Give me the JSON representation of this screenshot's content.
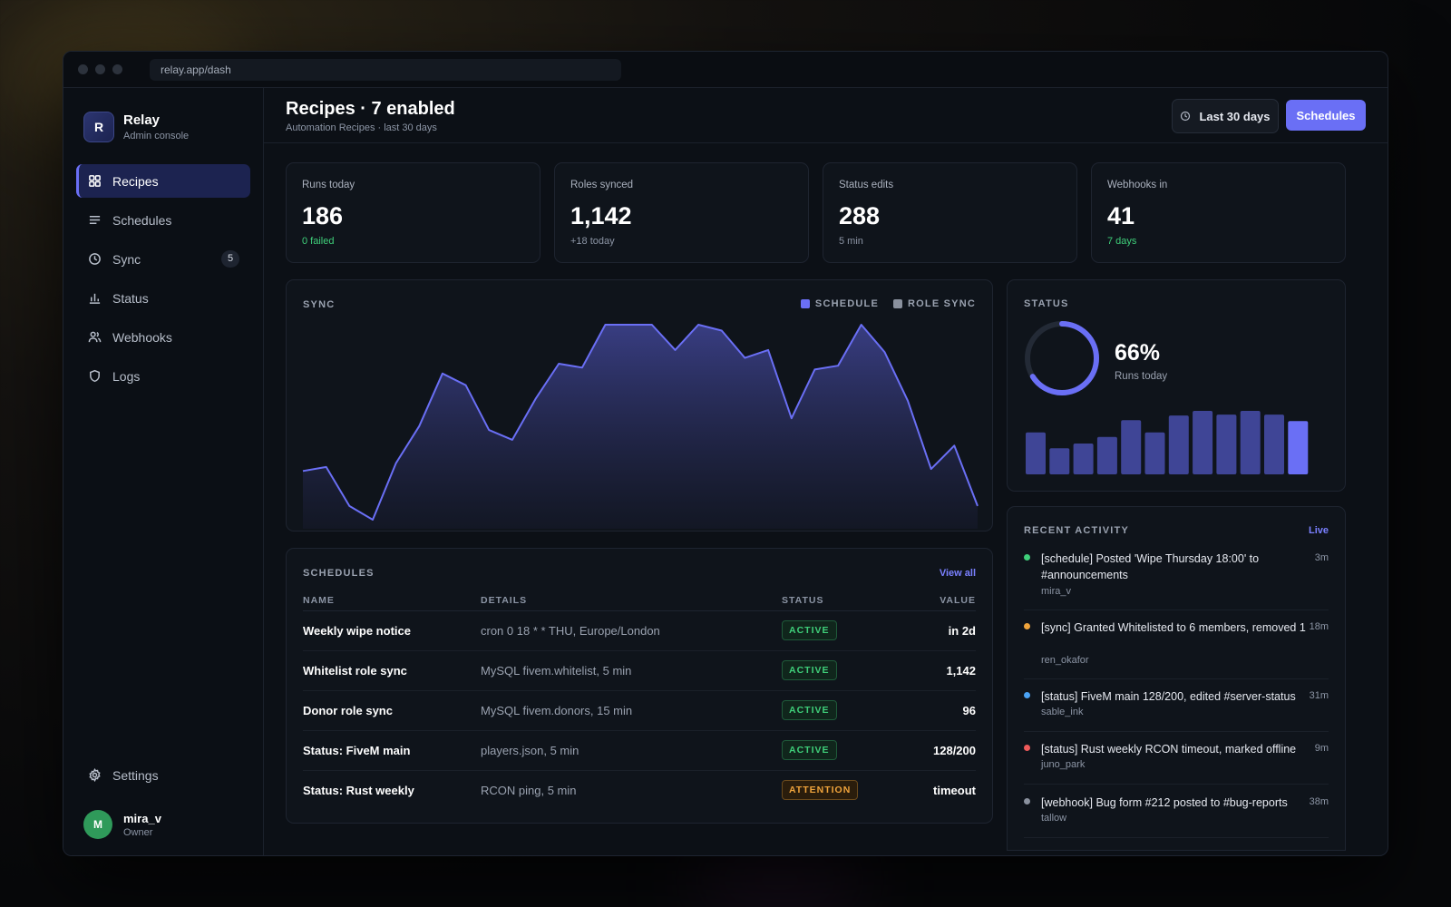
{
  "browser": {
    "url": "relay.app/dash"
  },
  "brand": {
    "logo_letter": "R",
    "name": "Relay",
    "subtitle": "Admin console"
  },
  "sidebar": {
    "items": [
      {
        "label": "Recipes",
        "icon": "grid-icon",
        "active": true
      },
      {
        "label": "Schedules",
        "icon": "list-icon"
      },
      {
        "label": "Sync",
        "icon": "clock-icon",
        "badge": "5"
      },
      {
        "label": "Status",
        "icon": "bar-chart-icon"
      },
      {
        "label": "Webhooks",
        "icon": "users-icon"
      },
      {
        "label": "Logs",
        "icon": "shield-icon"
      }
    ],
    "settings_label": "Settings"
  },
  "user": {
    "initial": "M",
    "name": "mira_v",
    "role": "Owner"
  },
  "header": {
    "title": "Recipes · 7 enabled",
    "subtitle": "Automation Recipes · last 30 days",
    "range_label": "Last 30 days",
    "primary_label": "Schedules"
  },
  "stats": [
    {
      "label": "Runs today",
      "value": "186",
      "sub": "0 failed",
      "sub_good": true
    },
    {
      "label": "Roles synced",
      "value": "1,142",
      "sub": "+18 today",
      "sub_good": false
    },
    {
      "label": "Status edits",
      "value": "288",
      "sub": "5 min",
      "sub_good": false
    },
    {
      "label": "Webhooks in",
      "value": "41",
      "sub": "7 days",
      "sub_good": true
    }
  ],
  "sync_panel": {
    "title": "SYNC",
    "legend": [
      {
        "label": "SCHEDULE",
        "color": "#6a6ff5"
      },
      {
        "label": "ROLE SYNC",
        "color": "#8a919e"
      }
    ]
  },
  "chart_data": [
    {
      "type": "area",
      "title": "SYNC",
      "series": [
        {
          "name": "SCHEDULE",
          "values": [
            25,
            27,
            7,
            0,
            29,
            48,
            75,
            69,
            46,
            41,
            62,
            80,
            78,
            100,
            100,
            100,
            87,
            100,
            97,
            83,
            87,
            52,
            77,
            79,
            100,
            86,
            61,
            26,
            38,
            7
          ]
        }
      ],
      "ylim": [
        0,
        100
      ]
    },
    {
      "type": "bar",
      "title": "STATUS",
      "values": [
        45,
        28,
        33,
        40,
        58,
        45,
        63,
        68,
        64,
        68,
        64,
        57
      ]
    }
  ],
  "status_panel": {
    "title": "STATUS",
    "percent_value": 66,
    "percent": "66%",
    "caption": "Runs today"
  },
  "schedules": {
    "title": "SCHEDULES",
    "view_all": "View all",
    "columns": [
      "NAME",
      "DETAILS",
      "STATUS",
      "VALUE"
    ],
    "rows": [
      {
        "name": "Weekly wipe notice",
        "details": "cron 0 18 * * THU, Europe/London",
        "status": "ACTIVE",
        "value": "in 2d"
      },
      {
        "name": "Whitelist role sync",
        "details": "MySQL fivem.whitelist, 5 min",
        "status": "ACTIVE",
        "value": "1,142"
      },
      {
        "name": "Donor role sync",
        "details": "MySQL fivem.donors, 15 min",
        "status": "ACTIVE",
        "value": "96"
      },
      {
        "name": "Status: FiveM main",
        "details": "players.json, 5 min",
        "status": "ACTIVE",
        "value": "128/200"
      },
      {
        "name": "Status: Rust weekly",
        "details": "RCON ping, 5 min",
        "status": "ATTENTION",
        "value": "timeout"
      }
    ]
  },
  "activity": {
    "title": "RECENT ACTIVITY",
    "live_label": "Live",
    "items": [
      {
        "text": "[schedule] Posted 'Wipe Thursday 18:00' to #announcements",
        "user": "mira_v",
        "time": "3m",
        "color": "#3fcf7a"
      },
      {
        "text": "[sync] Granted Whitelisted to 6 members, removed 1",
        "user": "ren_okafor",
        "time": "18m",
        "color": "#f0a43c"
      },
      {
        "text": "[status] FiveM main 128/200, edited #server-status",
        "user": "sable_ink",
        "time": "31m",
        "color": "#4aa3f5"
      },
      {
        "text": "[status] Rust weekly RCON timeout, marked offline",
        "user": "juno_park",
        "time": "9m",
        "color": "#ef5a5a"
      },
      {
        "text": "[webhook] Bug form #212 posted to #bug-reports",
        "user": "tallow",
        "time": "38m",
        "color": "#8a919e"
      }
    ]
  }
}
